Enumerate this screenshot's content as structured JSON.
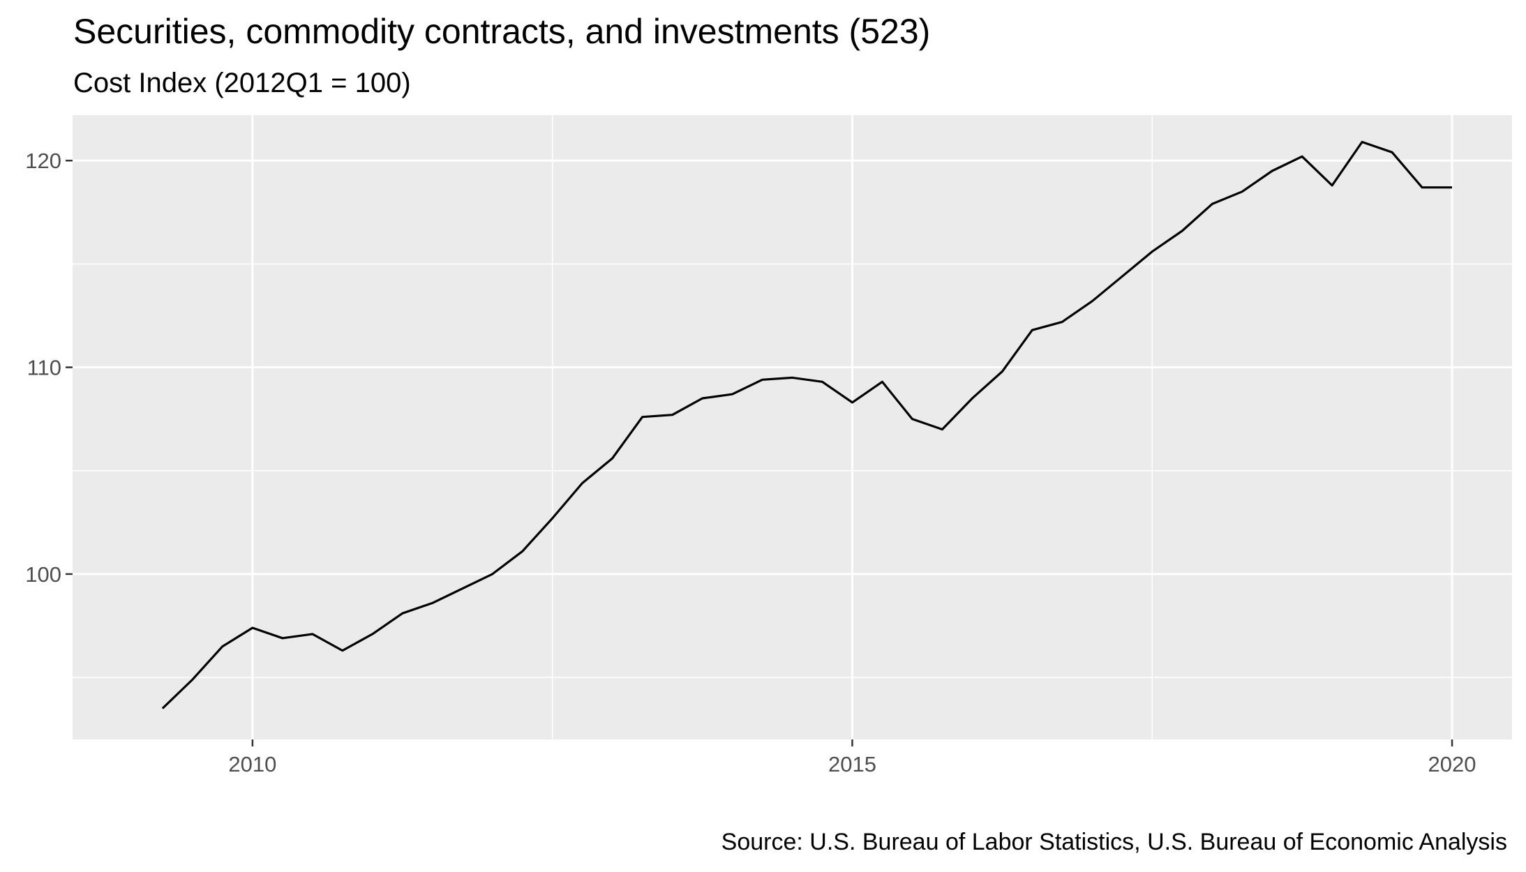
{
  "chart_data": {
    "type": "line",
    "title": "Securities, commodity contracts, and investments (523)",
    "subtitle": "Cost Index (2012Q1 = 100)",
    "caption": "Source: U.S. Bureau of Labor Statistics, U.S. Bureau of Economic Analysis",
    "xlabel": "",
    "ylabel": "",
    "x_ticks": [
      "2010",
      "2015",
      "2020"
    ],
    "y_ticks": [
      "100",
      "110",
      "120"
    ],
    "xlim": [
      2008.5,
      2020.5
    ],
    "ylim": [
      92.0,
      122.2
    ],
    "grid": true,
    "colors": {
      "panel_background": "#ebebeb",
      "grid": "#ffffff",
      "line": "#000000",
      "tick_text": "#4d4d4d"
    },
    "series": [
      {
        "x": [
          2009.25,
          2009.5,
          2009.75,
          2010.0,
          2010.25,
          2010.5,
          2010.75,
          2011.0,
          2011.25,
          2011.5,
          2011.75,
          2012.0,
          2012.25,
          2012.5,
          2012.75,
          2013.0,
          2013.25,
          2013.5,
          2013.75,
          2014.0,
          2014.25,
          2014.5,
          2014.75,
          2015.0,
          2015.25,
          2015.5,
          2015.75,
          2016.0,
          2016.25,
          2016.5,
          2016.75,
          2017.0,
          2017.25,
          2017.5,
          2017.75,
          2018.0,
          2018.25,
          2018.5,
          2018.75,
          2019.0,
          2019.25,
          2019.5,
          2019.75,
          2020.0
        ],
        "y": [
          93.5,
          94.9,
          96.5,
          97.4,
          96.9,
          97.1,
          96.3,
          97.1,
          98.1,
          98.6,
          99.3,
          100.0,
          101.1,
          102.7,
          104.4,
          105.6,
          107.6,
          107.7,
          108.5,
          108.7,
          109.4,
          109.5,
          109.3,
          108.3,
          109.3,
          107.5,
          107.0,
          108.5,
          109.8,
          111.8,
          112.2,
          113.2,
          114.4,
          115.6,
          116.6,
          117.9,
          118.5,
          119.5,
          120.2,
          118.8,
          120.9,
          120.4,
          118.7,
          118.7
        ]
      }
    ]
  }
}
